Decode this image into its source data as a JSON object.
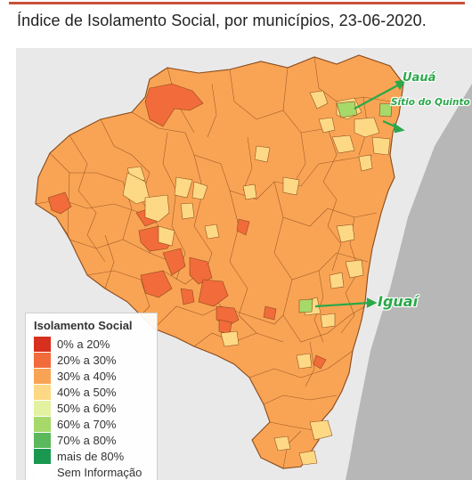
{
  "title": "Índice de Isolamento Social, por municípios, 23-06-2020.",
  "legend": {
    "title": "Isolamento Social",
    "items": [
      {
        "label": "0% a 20%",
        "color": "#d7301f"
      },
      {
        "label": "20% a 30%",
        "color": "#f26b3a"
      },
      {
        "label": "30% a 40%",
        "color": "#f9a455"
      },
      {
        "label": "40% a 50%",
        "color": "#fdd985"
      },
      {
        "label": "50% a 60%",
        "color": "#e2f2a0"
      },
      {
        "label": "60% a 70%",
        "color": "#a6d96a"
      },
      {
        "label": "70% a 80%",
        "color": "#5cb85c"
      },
      {
        "label": "mais de 80%",
        "color": "#1a9850"
      },
      {
        "label": "Sem Informação",
        "color": "#ffffff"
      }
    ]
  },
  "callouts": {
    "uaua": "Uauá",
    "sitio_do_quinto": "Sítio do Quinto",
    "iguai": "Iguaí"
  },
  "colors": {
    "state_fill": "#f9a455",
    "ocean": "#b9b9b9",
    "land_outside": "#e8e8e8",
    "border": "#8a4a1a",
    "callout": "#2aa84a"
  }
}
